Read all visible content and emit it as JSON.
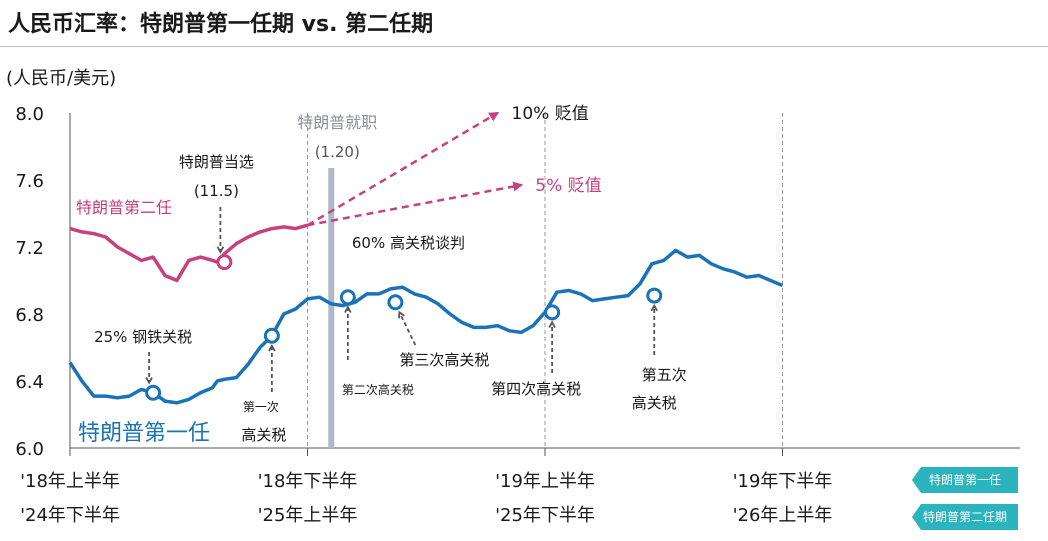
{
  "title": "人民币汇率：特朗普第一任期 vs. 第二任期",
  "chart_data": {
    "type": "line",
    "title": "人民币汇率：特朗普第一任期 vs. 第二任期",
    "ylabel": "(人民币/美元)",
    "ylim": [
      6.0,
      8.0
    ],
    "yticks": [
      "8.0",
      "7.6",
      "7.2",
      "6.8",
      "6.4",
      "6.0"
    ],
    "xticks_row1": [
      "'18年上半年",
      "'18年下半年",
      "'19年上半年",
      "'19年下半年"
    ],
    "xticks_row2": [
      "'24年下半年",
      "'25年上半年",
      "'25年下半年",
      "'26年上半年"
    ],
    "grid": "vertical dashed at half-year boundaries",
    "colors": {
      "term1": "#1a73b8",
      "term2": "#c8407e",
      "arrow": "#c8407e",
      "bar": "#b0b8c8"
    },
    "series": [
      {
        "name": "特朗普第一任",
        "x": [
          0.0,
          0.05,
          0.1,
          0.15,
          0.2,
          0.25,
          0.3,
          0.35,
          0.4,
          0.45,
          0.5,
          0.55,
          0.6,
          0.62,
          0.65,
          0.7,
          0.75,
          0.8,
          0.85,
          0.9,
          0.95,
          1.0,
          1.05,
          1.1,
          1.15,
          1.2,
          1.25,
          1.3,
          1.35,
          1.4,
          1.45,
          1.5,
          1.55,
          1.6,
          1.65,
          1.7,
          1.75,
          1.8,
          1.85,
          1.9,
          1.95,
          2.0,
          2.05,
          2.1,
          2.15,
          2.2,
          2.25,
          2.3,
          2.35,
          2.4,
          2.45,
          2.5,
          2.55,
          2.6,
          2.65,
          2.7,
          2.75,
          2.8,
          2.85,
          2.9,
          2.95,
          3.0
        ],
        "values": [
          6.51,
          6.4,
          6.31,
          6.31,
          6.3,
          6.31,
          6.35,
          6.33,
          6.28,
          6.27,
          6.29,
          6.33,
          6.36,
          6.4,
          6.41,
          6.42,
          6.5,
          6.6,
          6.67,
          6.8,
          6.83,
          6.89,
          6.9,
          6.86,
          6.85,
          6.87,
          6.92,
          6.92,
          6.95,
          6.96,
          6.92,
          6.9,
          6.86,
          6.8,
          6.75,
          6.72,
          6.72,
          6.73,
          6.7,
          6.69,
          6.73,
          6.81,
          6.93,
          6.94,
          6.92,
          6.88,
          6.89,
          6.9,
          6.91,
          6.98,
          7.1,
          7.12,
          7.18,
          7.14,
          7.15,
          7.1,
          7.07,
          7.05,
          7.02,
          7.03,
          7.0,
          6.97
        ]
      },
      {
        "name": "特朗普第二任",
        "x": [
          0.0,
          0.05,
          0.1,
          0.15,
          0.2,
          0.25,
          0.3,
          0.35,
          0.4,
          0.45,
          0.5,
          0.55,
          0.6,
          0.62,
          0.65,
          0.7,
          0.75,
          0.8,
          0.85,
          0.9,
          0.95,
          1.0
        ],
        "values": [
          7.31,
          7.29,
          7.28,
          7.26,
          7.2,
          7.16,
          7.12,
          7.14,
          7.03,
          7.0,
          7.12,
          7.14,
          7.12,
          7.11,
          7.16,
          7.22,
          7.26,
          7.29,
          7.31,
          7.32,
          7.31,
          7.33
        ]
      }
    ],
    "projections": [
      {
        "label": "10% 贬值",
        "x_end": 1.8,
        "y_end": 8.0
      },
      {
        "label": "5% 贬值",
        "x_end": 1.9,
        "y_end": 7.57
      }
    ],
    "inauguration": {
      "label": "特朗普就职",
      "value_label": "(1.20)",
      "x": 1.1
    },
    "annotations": [
      {
        "label": "特朗普当选",
        "sub": "(11.5)",
        "series": "特朗普第二任",
        "x": 0.65,
        "y": 7.11
      },
      {
        "label": "25% 钢铁关税",
        "series": "特朗普第一任",
        "x": 0.35,
        "y": 6.33
      },
      {
        "label": "第一次",
        "sub": "高关税",
        "series": "特朗普第一任",
        "x": 0.85,
        "y": 6.67
      },
      {
        "label": "60% 高关税谈判",
        "series": "特朗普第一任",
        "x": 1.17,
        "y": 6.9
      },
      {
        "label": "第二次高关税",
        "series": "特朗普第一任",
        "x": 1.17,
        "y": 6.9
      },
      {
        "label": "第三次高关税",
        "series": "特朗普第一任",
        "x": 1.37,
        "y": 6.87
      },
      {
        "label": "第四次高关税",
        "series": "特朗普第一任",
        "x": 2.03,
        "y": 6.81
      },
      {
        "label": "第五次",
        "sub": "高关税",
        "series": "特朗普第一任",
        "x": 2.46,
        "y": 6.91
      }
    ]
  },
  "legend": {
    "term1_label": "特朗普第一任",
    "term2_label": "特朗普第二任",
    "tag1": "特朗普第一任",
    "tag2": "特朗普第二任期"
  }
}
